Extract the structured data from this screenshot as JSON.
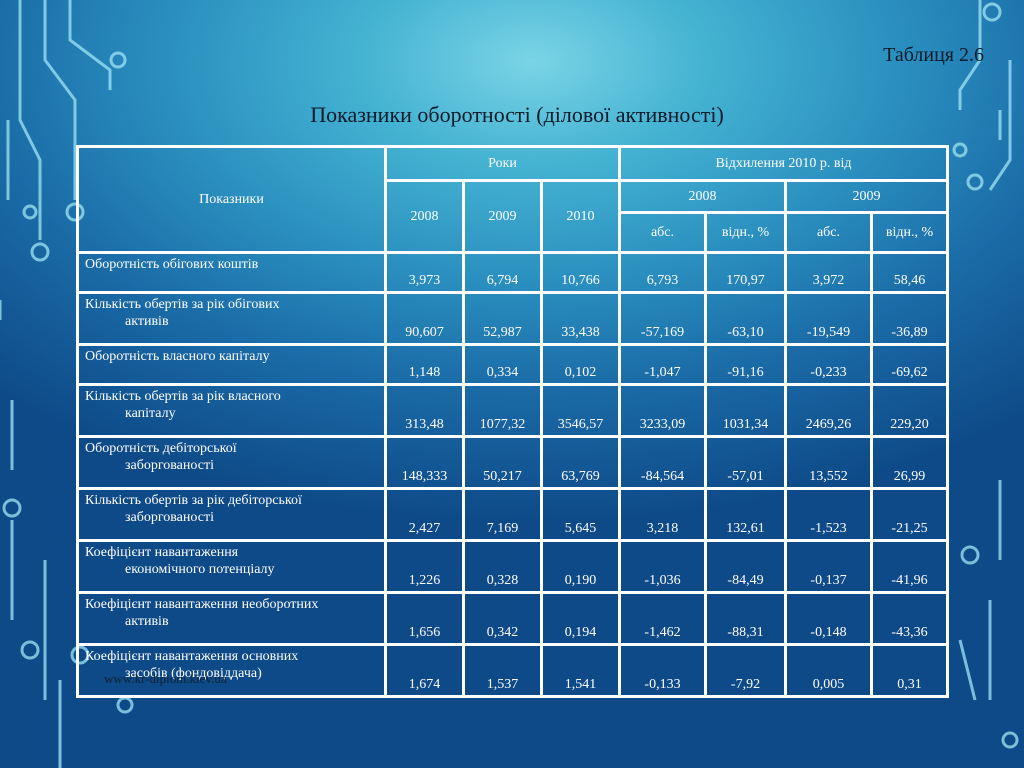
{
  "caption": "Таблиця 2.6",
  "title": "Показники оборотності (ділової активності)",
  "watermark": "www.kr-diplom.kiev.ua",
  "header": {
    "indicators": "Показники",
    "years": "Роки",
    "deviation": "Відхилення 2010 р. від",
    "y2008": "2008",
    "y2009": "2009",
    "y2010": "2010",
    "dev2008": "2008",
    "dev2009": "2009",
    "abs": "абс.",
    "rel": "відн., %"
  },
  "rows": [
    {
      "l1": "Оборотність обігових коштів",
      "l2": "",
      "v": [
        "3,973",
        "6,794",
        "10,766",
        "6,793",
        "170,97",
        "3,972",
        "58,46"
      ]
    },
    {
      "l1": "Кількість обертів за рік обігових",
      "l2": "активів",
      "v": [
        "90,607",
        "52,987",
        "33,438",
        "-57,169",
        "-63,10",
        "-19,549",
        "-36,89"
      ]
    },
    {
      "l1": "Оборотність власного капіталу",
      "l2": "",
      "v": [
        "1,148",
        "0,334",
        "0,102",
        "-1,047",
        "-91,16",
        "-0,233",
        "-69,62"
      ]
    },
    {
      "l1": "Кількість обертів за рік власного",
      "l2": "капіталу",
      "v": [
        "313,48",
        "1077,32",
        "3546,57",
        "3233,09",
        "1031,34",
        "2469,26",
        "229,20"
      ]
    },
    {
      "l1": "Оборотність дебіторської",
      "l2": "заборгованості",
      "v": [
        "148,333",
        "50,217",
        "63,769",
        "-84,564",
        "-57,01",
        "13,552",
        "26,99"
      ]
    },
    {
      "l1": "Кількість обертів за рік дебіторської",
      "l2": "заборгованості",
      "v": [
        "2,427",
        "7,169",
        "5,645",
        "3,218",
        "132,61",
        "-1,523",
        "-21,25"
      ]
    },
    {
      "l1": "Коефіцієнт навантаження",
      "l2": "економічного потенціалу",
      "v": [
        "1,226",
        "0,328",
        "0,190",
        "-1,036",
        "-84,49",
        "-0,137",
        "-41,96"
      ]
    },
    {
      "l1": "Коефіцієнт навантаження необоротних",
      "l2": "активів",
      "v": [
        "1,656",
        "0,342",
        "0,194",
        "-1,462",
        "-88,31",
        "-0,148",
        "-43,36"
      ]
    },
    {
      "l1": "Коефіцієнт навантаження основних",
      "l2": "засобів (фондовіддача)",
      "v": [
        "1,674",
        "1,537",
        "1,541",
        "-0,133",
        "-7,92",
        "0,005",
        "0,31"
      ]
    }
  ]
}
